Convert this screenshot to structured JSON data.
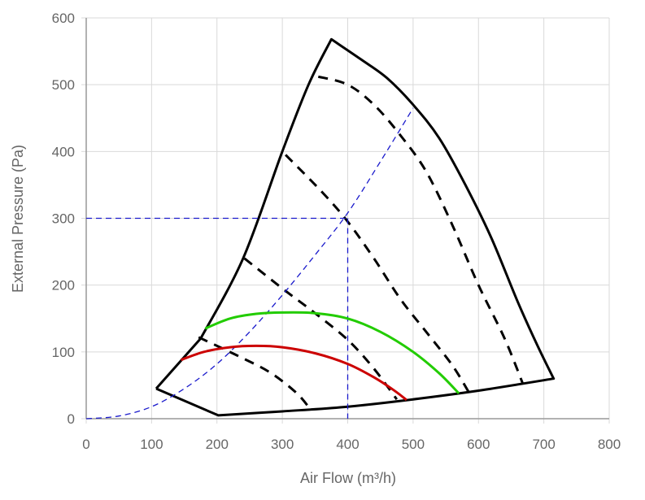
{
  "chart_data": {
    "type": "line",
    "title": "",
    "xlabel": "Air Flow (m³/h)",
    "ylabel": "External Pressure (Pa)",
    "xlim": [
      0,
      800
    ],
    "ylim": [
      0,
      600
    ],
    "x_ticks": [
      0,
      100,
      200,
      300,
      400,
      500,
      600,
      700,
      800
    ],
    "y_ticks": [
      0,
      100,
      200,
      300,
      400,
      500,
      600
    ],
    "x_tick_labels": [
      "0",
      "100",
      "200",
      "300",
      "400",
      "500",
      "600",
      "700",
      "800"
    ],
    "y_tick_labels": [
      "0",
      "100",
      "200",
      "300",
      "400",
      "500",
      "600"
    ],
    "grid": true,
    "colors": {
      "grid": "#d9d9d9",
      "axis": "#666666",
      "envelope": "#000000",
      "speed_lines": "#000000",
      "guide": "#1a1acc",
      "green": "#22cc00",
      "red": "#cc0000"
    },
    "series": [
      {
        "name": "operating-envelope",
        "style": "solid-black",
        "points": [
          [
            107,
            45
          ],
          [
            175,
            120
          ],
          [
            240,
            240
          ],
          [
            300,
            400
          ],
          [
            340,
            500
          ],
          [
            375,
            568
          ],
          [
            420,
            538
          ],
          [
            460,
            510
          ],
          [
            500,
            470
          ],
          [
            540,
            420
          ],
          [
            580,
            350
          ],
          [
            620,
            270
          ],
          [
            660,
            175
          ],
          [
            690,
            110
          ],
          [
            715,
            60
          ],
          [
            600,
            42
          ],
          [
            500,
            29
          ],
          [
            400,
            18
          ],
          [
            300,
            11
          ],
          [
            202,
            5
          ],
          [
            107,
            45
          ]
        ]
      },
      {
        "name": "speed-line-1",
        "style": "dashed-black",
        "points": [
          [
            355,
            512
          ],
          [
            400,
            500
          ],
          [
            440,
            470
          ],
          [
            480,
            425
          ],
          [
            520,
            370
          ],
          [
            560,
            290
          ],
          [
            600,
            200
          ],
          [
            640,
            120
          ],
          [
            668,
            52
          ]
        ]
      },
      {
        "name": "speed-line-2",
        "style": "dashed-black",
        "points": [
          [
            305,
            395
          ],
          [
            360,
            340
          ],
          [
            400,
            295
          ],
          [
            440,
            240
          ],
          [
            480,
            180
          ],
          [
            520,
            130
          ],
          [
            560,
            80
          ],
          [
            585,
            40
          ]
        ]
      },
      {
        "name": "speed-line-3",
        "style": "dashed-black",
        "points": [
          [
            242,
            240
          ],
          [
            300,
            195
          ],
          [
            350,
            158
          ],
          [
            400,
            118
          ],
          [
            440,
            75
          ],
          [
            475,
            29
          ]
        ]
      },
      {
        "name": "speed-line-4",
        "style": "dashed-black",
        "points": [
          [
            172,
            122
          ],
          [
            230,
            95
          ],
          [
            280,
            70
          ],
          [
            320,
            40
          ],
          [
            340,
            18
          ]
        ]
      },
      {
        "name": "system-curve",
        "style": "dashed-blue",
        "points": [
          [
            0,
            0
          ],
          [
            50,
            4
          ],
          [
            100,
            18
          ],
          [
            150,
            45
          ],
          [
            200,
            82
          ],
          [
            250,
            130
          ],
          [
            300,
            185
          ],
          [
            350,
            245
          ],
          [
            400,
            308
          ],
          [
            450,
            385
          ],
          [
            500,
            465
          ]
        ]
      },
      {
        "name": "guide-horizontal-300",
        "style": "dashed-blue",
        "points": [
          [
            0,
            300
          ],
          [
            400,
            300
          ]
        ]
      },
      {
        "name": "guide-vertical-400",
        "style": "dashed-blue",
        "points": [
          [
            400,
            300
          ],
          [
            400,
            0
          ]
        ]
      },
      {
        "name": "green-curve",
        "style": "solid-green",
        "points": [
          [
            182,
            135
          ],
          [
            220,
            150
          ],
          [
            260,
            157
          ],
          [
            300,
            159
          ],
          [
            350,
            158
          ],
          [
            400,
            150
          ],
          [
            450,
            130
          ],
          [
            500,
            100
          ],
          [
            540,
            68
          ],
          [
            570,
            38
          ]
        ]
      },
      {
        "name": "red-curve",
        "style": "solid-red",
        "points": [
          [
            145,
            88
          ],
          [
            180,
            100
          ],
          [
            220,
            107
          ],
          [
            260,
            109
          ],
          [
            300,
            107
          ],
          [
            350,
            98
          ],
          [
            400,
            82
          ],
          [
            440,
            62
          ],
          [
            470,
            43
          ],
          [
            490,
            28
          ]
        ]
      }
    ]
  }
}
